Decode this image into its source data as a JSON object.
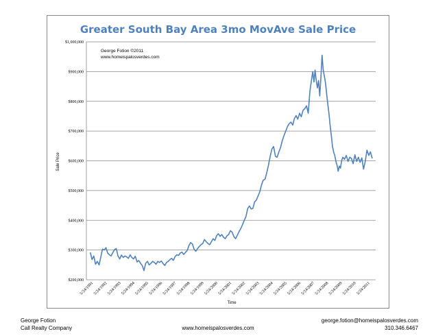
{
  "chart_data": {
    "type": "line",
    "title": "Greater South Bay Area 3mo MovAve Sale Price",
    "xlabel": "Time",
    "ylabel": "Sale Price",
    "ylim": [
      200000,
      1000000
    ],
    "y_ticks": [
      "$200,000",
      "$300,000",
      "$400,000",
      "$500,000",
      "$600,000",
      "$700,000",
      "$800,000",
      "$900,000",
      "$1,000,000"
    ],
    "x_ticks": [
      "5/24/1991",
      "5/24/1992",
      "5/24/1993",
      "5/24/1994",
      "5/24/1995",
      "5/24/1996",
      "5/24/1997",
      "5/24/1998",
      "5/24/1999",
      "5/24/2000",
      "5/24/2001",
      "5/24/2002",
      "5/24/2003",
      "5/24/2004",
      "5/24/2005",
      "5/24/2006",
      "5/24/2007",
      "5/24/2008",
      "5/24/2009",
      "5/24/2010",
      "5/24/2011"
    ],
    "grid": "horizontal",
    "legend": "none",
    "line_color": "#4f81bd",
    "annotations": [
      "George Fotion ©2011",
      "www.homeispalosverdes.com"
    ],
    "series": [
      {
        "points": [
          [
            "1991-04-15",
            292000
          ],
          [
            "1991-06-01",
            268000
          ],
          [
            "1991-07-15",
            280000
          ],
          [
            "1991-09-01",
            252000
          ],
          [
            "1991-10-15",
            262000
          ],
          [
            "1991-12-01",
            250000
          ],
          [
            "1992-01-15",
            275000
          ],
          [
            "1992-03-01",
            303000
          ],
          [
            "1992-04-15",
            300000
          ],
          [
            "1992-06-01",
            308000
          ],
          [
            "1992-07-15",
            290000
          ],
          [
            "1992-09-01",
            284000
          ],
          [
            "1992-10-15",
            280000
          ],
          [
            "1992-12-01",
            292000
          ],
          [
            "1993-01-15",
            302000
          ],
          [
            "1993-03-01",
            305000
          ],
          [
            "1993-04-15",
            280000
          ],
          [
            "1993-06-01",
            270000
          ],
          [
            "1993-07-15",
            283000
          ],
          [
            "1993-09-01",
            275000
          ],
          [
            "1993-10-15",
            280000
          ],
          [
            "1993-12-01",
            277000
          ],
          [
            "1994-01-15",
            272000
          ],
          [
            "1994-03-01",
            284000
          ],
          [
            "1994-04-15",
            275000
          ],
          [
            "1994-06-01",
            270000
          ],
          [
            "1994-07-15",
            279000
          ],
          [
            "1994-09-01",
            260000
          ],
          [
            "1994-10-15",
            265000
          ],
          [
            "1994-12-01",
            255000
          ],
          [
            "1995-01-15",
            248000
          ],
          [
            "1995-03-01",
            231000
          ],
          [
            "1995-04-15",
            255000
          ],
          [
            "1995-06-01",
            262000
          ],
          [
            "1995-07-15",
            250000
          ],
          [
            "1995-09-01",
            255000
          ],
          [
            "1995-10-15",
            262000
          ],
          [
            "1995-12-01",
            258000
          ],
          [
            "1996-01-15",
            252000
          ],
          [
            "1996-03-01",
            262000
          ],
          [
            "1996-04-15",
            258000
          ],
          [
            "1996-06-01",
            263000
          ],
          [
            "1996-07-15",
            255000
          ],
          [
            "1996-09-01",
            248000
          ],
          [
            "1996-10-15",
            258000
          ],
          [
            "1996-12-01",
            262000
          ],
          [
            "1997-01-15",
            268000
          ],
          [
            "1997-03-01",
            272000
          ],
          [
            "1997-04-15",
            265000
          ],
          [
            "1997-06-01",
            278000
          ],
          [
            "1997-07-15",
            284000
          ],
          [
            "1997-09-01",
            282000
          ],
          [
            "1997-10-15",
            290000
          ],
          [
            "1997-12-01",
            293000
          ],
          [
            "1998-01-15",
            285000
          ],
          [
            "1998-03-01",
            292000
          ],
          [
            "1998-04-15",
            298000
          ],
          [
            "1998-06-01",
            315000
          ],
          [
            "1998-07-15",
            325000
          ],
          [
            "1998-09-01",
            320000
          ],
          [
            "1998-10-15",
            303000
          ],
          [
            "1998-12-01",
            296000
          ],
          [
            "1999-01-15",
            305000
          ],
          [
            "1999-03-01",
            312000
          ],
          [
            "1999-04-15",
            318000
          ],
          [
            "1999-06-01",
            322000
          ],
          [
            "1999-07-15",
            335000
          ],
          [
            "1999-09-01",
            328000
          ],
          [
            "1999-10-15",
            322000
          ],
          [
            "1999-12-01",
            318000
          ],
          [
            "2000-01-15",
            328000
          ],
          [
            "2000-03-01",
            338000
          ],
          [
            "2000-04-15",
            332000
          ],
          [
            "2000-06-01",
            348000
          ],
          [
            "2000-07-15",
            355000
          ],
          [
            "2000-09-01",
            346000
          ],
          [
            "2000-10-15",
            352000
          ],
          [
            "2000-12-01",
            343000
          ],
          [
            "2001-01-15",
            338000
          ],
          [
            "2001-03-01",
            348000
          ],
          [
            "2001-04-15",
            352000
          ],
          [
            "2001-06-01",
            365000
          ],
          [
            "2001-07-15",
            360000
          ],
          [
            "2001-09-01",
            345000
          ],
          [
            "2001-10-15",
            338000
          ],
          [
            "2001-12-01",
            350000
          ],
          [
            "2002-01-15",
            362000
          ],
          [
            "2002-03-01",
            372000
          ],
          [
            "2002-04-15",
            385000
          ],
          [
            "2002-06-01",
            400000
          ],
          [
            "2002-07-15",
            412000
          ],
          [
            "2002-09-01",
            440000
          ],
          [
            "2002-10-15",
            448000
          ],
          [
            "2002-12-01",
            438000
          ],
          [
            "2003-01-15",
            440000
          ],
          [
            "2003-03-01",
            462000
          ],
          [
            "2003-04-15",
            468000
          ],
          [
            "2003-06-01",
            482000
          ],
          [
            "2003-07-15",
            495000
          ],
          [
            "2003-09-01",
            520000
          ],
          [
            "2003-10-15",
            535000
          ],
          [
            "2003-12-01",
            538000
          ],
          [
            "2004-01-15",
            560000
          ],
          [
            "2004-03-01",
            585000
          ],
          [
            "2004-04-15",
            615000
          ],
          [
            "2004-06-01",
            640000
          ],
          [
            "2004-07-15",
            648000
          ],
          [
            "2004-09-01",
            615000
          ],
          [
            "2004-10-15",
            612000
          ],
          [
            "2004-12-01",
            630000
          ],
          [
            "2005-01-15",
            645000
          ],
          [
            "2005-03-01",
            668000
          ],
          [
            "2005-04-15",
            685000
          ],
          [
            "2005-06-01",
            700000
          ],
          [
            "2005-07-15",
            715000
          ],
          [
            "2005-09-01",
            725000
          ],
          [
            "2005-10-15",
            730000
          ],
          [
            "2005-12-01",
            720000
          ],
          [
            "2006-01-15",
            742000
          ],
          [
            "2006-03-01",
            752000
          ],
          [
            "2006-04-15",
            740000
          ],
          [
            "2006-06-01",
            760000
          ],
          [
            "2006-07-15",
            748000
          ],
          [
            "2006-09-01",
            770000
          ],
          [
            "2006-10-15",
            775000
          ],
          [
            "2006-12-01",
            785000
          ],
          [
            "2007-01-15",
            760000
          ],
          [
            "2007-03-01",
            835000
          ],
          [
            "2007-04-15",
            875000
          ],
          [
            "2007-05-15",
            900000
          ],
          [
            "2007-06-15",
            865000
          ],
          [
            "2007-07-15",
            905000
          ],
          [
            "2007-08-15",
            870000
          ],
          [
            "2007-09-15",
            845000
          ],
          [
            "2007-10-15",
            870000
          ],
          [
            "2007-11-15",
            818000
          ],
          [
            "2007-12-15",
            880000
          ],
          [
            "2008-01-15",
            955000
          ],
          [
            "2008-02-15",
            905000
          ],
          [
            "2008-03-15",
            885000
          ],
          [
            "2008-04-15",
            862000
          ],
          [
            "2008-05-15",
            825000
          ],
          [
            "2008-06-15",
            790000
          ],
          [
            "2008-07-15",
            760000
          ],
          [
            "2008-08-15",
            720000
          ],
          [
            "2008-09-15",
            685000
          ],
          [
            "2008-10-15",
            650000
          ],
          [
            "2008-11-15",
            630000
          ],
          [
            "2008-12-15",
            618000
          ],
          [
            "2009-01-15",
            598000
          ],
          [
            "2009-02-15",
            585000
          ],
          [
            "2009-03-15",
            565000
          ],
          [
            "2009-04-15",
            582000
          ],
          [
            "2009-05-15",
            575000
          ],
          [
            "2009-06-15",
            600000
          ],
          [
            "2009-07-15",
            612000
          ],
          [
            "2009-09-01",
            605000
          ],
          [
            "2009-10-15",
            618000
          ],
          [
            "2009-12-01",
            598000
          ],
          [
            "2010-01-15",
            612000
          ],
          [
            "2010-03-01",
            608000
          ],
          [
            "2010-04-15",
            590000
          ],
          [
            "2010-06-01",
            620000
          ],
          [
            "2010-07-15",
            598000
          ],
          [
            "2010-09-01",
            612000
          ],
          [
            "2010-10-15",
            595000
          ],
          [
            "2010-12-01",
            610000
          ],
          [
            "2011-01-15",
            572000
          ],
          [
            "2011-03-01",
            598000
          ],
          [
            "2011-04-15",
            636000
          ],
          [
            "2011-06-01",
            618000
          ],
          [
            "2011-07-15",
            630000
          ],
          [
            "2011-09-01",
            608000
          ]
        ]
      }
    ]
  },
  "footer": {
    "name": "George Fotion",
    "company": "Call Realty Company",
    "website": "www.homeispalosverdes.com",
    "email": "george.fotion@homeispalosverdes.com",
    "phone": "310.346.6467"
  }
}
